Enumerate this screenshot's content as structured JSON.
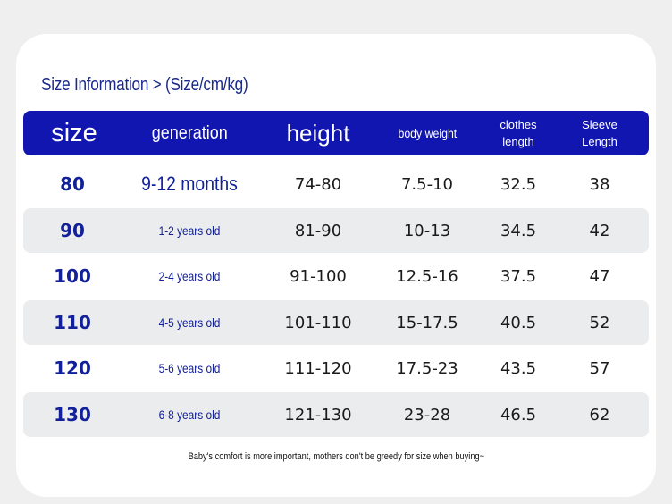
{
  "title": "Size Information > (Size/cm/kg)",
  "colors": {
    "header_bg": "#1216b0",
    "accent_text": "#12209a",
    "row_shade": "#ebecee"
  },
  "headers": {
    "size": "size",
    "generation": "generation",
    "height": "height",
    "body_weight": "body weight",
    "clothes_length_1": "clothes",
    "clothes_length_2": "length",
    "sleeve_length_1": "Sleeve",
    "sleeve_length_2": "Length"
  },
  "rows": [
    {
      "size": "80",
      "generation": "9-12 months",
      "height": "74-80",
      "weight": "7.5-10",
      "clothes": "32.5",
      "sleeve": "38"
    },
    {
      "size": "90",
      "generation": "1-2 years old",
      "height": "81-90",
      "weight": "10-13",
      "clothes": "34.5",
      "sleeve": "42"
    },
    {
      "size": "100",
      "generation": "2-4 years old",
      "height": "91-100",
      "weight": "12.5-16",
      "clothes": "37.5",
      "sleeve": "47"
    },
    {
      "size": "110",
      "generation": "4-5 years old",
      "height": "101-110",
      "weight": "15-17.5",
      "clothes": "40.5",
      "sleeve": "52"
    },
    {
      "size": "120",
      "generation": "5-6 years old",
      "height": "111-120",
      "weight": "17.5-23",
      "clothes": "43.5",
      "sleeve": "57"
    },
    {
      "size": "130",
      "generation": "6-8 years old",
      "height": "121-130",
      "weight": "23-28",
      "clothes": "46.5",
      "sleeve": "62"
    }
  ],
  "footer": "Baby's comfort is more important, mothers don't be greedy for size when buying~"
}
